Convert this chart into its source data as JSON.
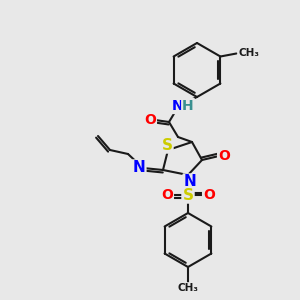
{
  "background_color": "#e8e8e8",
  "bond_color": "#1a1a1a",
  "bond_width": 1.5,
  "atom_colors": {
    "N": "#0000ff",
    "O": "#ff0000",
    "S": "#cccc00",
    "H": "#3a9090",
    "C": "#1a1a1a"
  },
  "font_size": 9,
  "fig_width": 3.0,
  "fig_height": 3.0,
  "dpi": 100
}
